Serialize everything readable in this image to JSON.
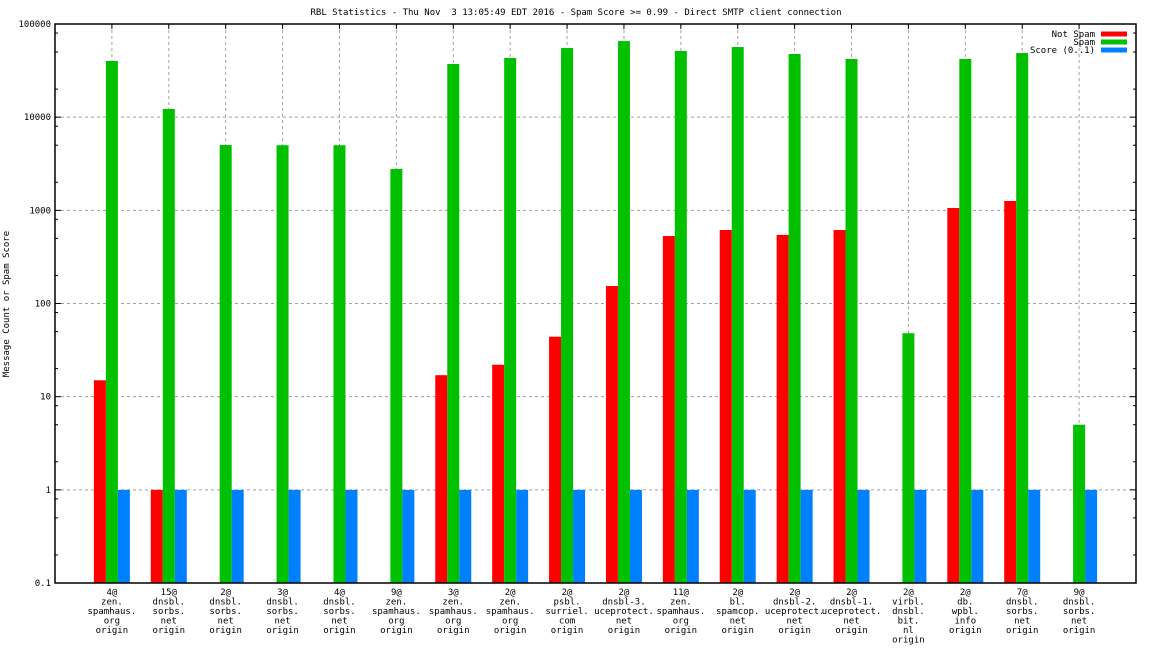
{
  "chart_data": {
    "type": "bar",
    "title": "RBL Statistics - Thu Nov  3 13:05:49 EDT 2016 - Spam Score >= 0.99 - Direct SMTP client connection",
    "xlabel": "",
    "ylabel": "Message Count or Spam Score",
    "yscale": "log",
    "ylim": [
      0.1,
      100000
    ],
    "yticks": [
      "0.1",
      "1",
      "10",
      "100",
      "1000",
      "10000",
      "100000"
    ],
    "ytick_values": [
      0.1,
      1,
      10,
      100,
      1000,
      10000,
      100000
    ],
    "grid": true,
    "legend_position": "top-right",
    "categories": [
      [
        "4@",
        "zen.",
        "spamhaus.",
        "org",
        "origin"
      ],
      [
        "15@",
        "dnsbl.",
        "sorbs.",
        "net",
        "origin"
      ],
      [
        "2@",
        "dnsbl.",
        "sorbs.",
        "net",
        "origin"
      ],
      [
        "3@",
        "dnsbl.",
        "sorbs.",
        "net",
        "origin"
      ],
      [
        "4@",
        "dnsbl.",
        "sorbs.",
        "net",
        "origin"
      ],
      [
        "9@",
        "zen.",
        "spamhaus.",
        "org",
        "origin"
      ],
      [
        "3@",
        "zen.",
        "spamhaus.",
        "org",
        "origin"
      ],
      [
        "2@",
        "zen.",
        "spamhaus.",
        "org",
        "origin"
      ],
      [
        "2@",
        "psbl.",
        "surriel.",
        "com",
        "origin"
      ],
      [
        "2@",
        "dnsbl-3.",
        "uceprotect.",
        "net",
        "origin"
      ],
      [
        "11@",
        "zen.",
        "spamhaus.",
        "org",
        "origin"
      ],
      [
        "2@",
        "bl.",
        "spamcop.",
        "net",
        "origin"
      ],
      [
        "2@",
        "dnsbl-2.",
        "uceprotect.",
        "net",
        "origin"
      ],
      [
        "2@",
        "dnsbl-1.",
        "uceprotect.",
        "net",
        "origin"
      ],
      [
        "2@",
        "virbl.",
        "dnsbl.",
        "bit.",
        "nl",
        "origin"
      ],
      [
        "2@",
        "db.",
        "wpbl.",
        "info",
        "origin"
      ],
      [
        "7@",
        "dnsbl.",
        "sorbs.",
        "net",
        "origin"
      ],
      [
        "9@",
        "dnsbl.",
        "sorbs.",
        "net",
        "origin"
      ]
    ],
    "series": [
      {
        "name": "Not Spam",
        "color": "#ff0000",
        "values": [
          15,
          1,
          null,
          null,
          null,
          null,
          17,
          22,
          44,
          154,
          530,
          615,
          545,
          615,
          null,
          1060,
          1260,
          null
        ]
      },
      {
        "name": "Spam",
        "color": "#00c000",
        "values": [
          40100,
          12250,
          5020,
          5000,
          5000,
          2780,
          37200,
          43200,
          55200,
          65600,
          51300,
          56600,
          47700,
          42100,
          48,
          42100,
          48800,
          5
        ]
      },
      {
        "name": "Score (0..1)",
        "color": "#0080ff",
        "values": [
          1,
          1,
          1,
          1,
          1,
          1,
          1,
          1,
          1,
          1,
          1,
          1,
          1,
          1,
          1,
          1,
          1,
          1
        ]
      }
    ]
  }
}
